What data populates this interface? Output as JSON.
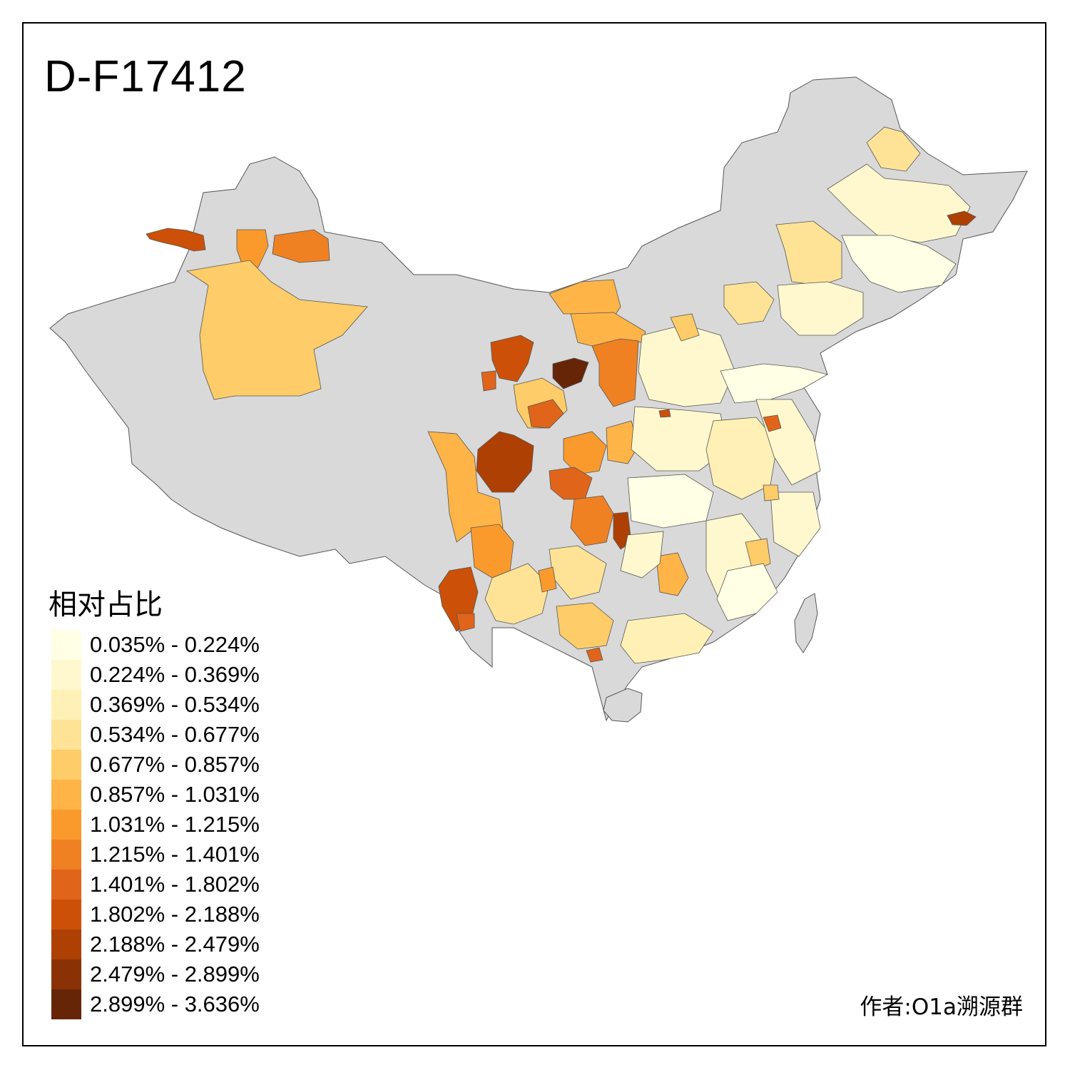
{
  "title": "D-F17412",
  "legend": {
    "title": "相对占比",
    "items": [
      {
        "label": "0.035% - 0.224%",
        "color": "#ffffe5"
      },
      {
        "label": "0.224% - 0.369%",
        "color": "#fff8cf"
      },
      {
        "label": "0.369% - 0.534%",
        "color": "#fff0b5"
      },
      {
        "label": "0.534% - 0.677%",
        "color": "#fee397"
      },
      {
        "label": "0.677% - 0.857%",
        "color": "#fecc68"
      },
      {
        "label": "0.857% - 1.031%",
        "color": "#feb447"
      },
      {
        "label": "1.031% - 1.215%",
        "color": "#fb9a2c"
      },
      {
        "label": "1.215% - 1.401%",
        "color": "#f08123"
      },
      {
        "label": "1.401% - 1.802%",
        "color": "#e0651a"
      },
      {
        "label": "1.802% - 2.188%",
        "color": "#cc5008"
      },
      {
        "label": "2.188% - 2.479%",
        "color": "#ae4004"
      },
      {
        "label": "2.479% - 2.899%",
        "color": "#8a3205"
      },
      {
        "label": "2.899% - 3.636%",
        "color": "#662506"
      }
    ]
  },
  "no_data_color": "#d9d9d9",
  "credit": "作者:O1a溯源群"
}
